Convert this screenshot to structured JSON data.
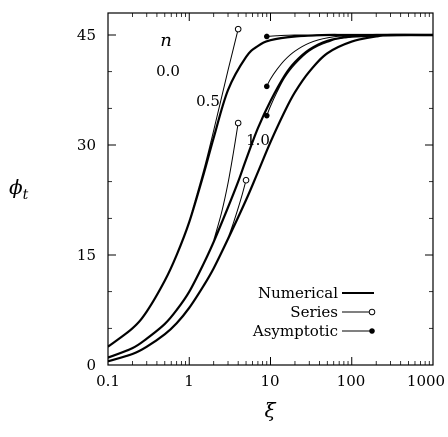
{
  "chart_data": {
    "type": "line",
    "xlabel": "ξ",
    "ylabel": "ϕ_t",
    "xscale": "log",
    "xlim": [
      0.1,
      1000
    ],
    "ylim": [
      0,
      48
    ],
    "x_ticks": [
      {
        "value": 0.1,
        "label": "0.1"
      },
      {
        "value": 1,
        "label": "1"
      },
      {
        "value": 10,
        "label": "10"
      },
      {
        "value": 100,
        "label": "100"
      },
      {
        "value": 1000,
        "label": "1000"
      }
    ],
    "y_ticks": [
      {
        "value": 0,
        "label": "0"
      },
      {
        "value": 15,
        "label": "15"
      },
      {
        "value": 30,
        "label": "30"
      },
      {
        "value": 45,
        "label": "45"
      }
    ],
    "parameter_label": "n",
    "grid": false,
    "legend_position": "bottom-right",
    "legend": [
      "Numerical",
      "Series",
      "Asymptotic"
    ],
    "curve_labels": [
      {
        "text": "0.0",
        "x": 1.5,
        "y": 40.5
      },
      {
        "text": "0.5",
        "x": 3.0,
        "y": 35.5
      },
      {
        "text": "1.0",
        "x": 13,
        "y": 30
      }
    ],
    "numerical": [
      {
        "n": "0.0",
        "x": [
          0.1,
          0.2,
          0.3,
          0.5,
          0.7,
          1,
          1.5,
          2,
          3,
          5,
          7,
          10,
          20,
          50,
          100,
          1000
        ],
        "y": [
          2.5,
          5,
          7.3,
          11.5,
          15,
          19.5,
          26,
          31,
          37.5,
          42,
          43.5,
          44.3,
          44.8,
          45,
          45,
          45
        ]
      },
      {
        "n": "0.5",
        "x": [
          0.1,
          0.2,
          0.3,
          0.5,
          0.7,
          1,
          1.5,
          2,
          3,
          4,
          5,
          7,
          10,
          15,
          20,
          30,
          50,
          100,
          200,
          1000
        ],
        "y": [
          1,
          2.3,
          3.6,
          5.6,
          7.5,
          10,
          13.8,
          16.8,
          21.5,
          25,
          28,
          32.3,
          36,
          39.5,
          41.3,
          43,
          44.2,
          44.8,
          45,
          45
        ]
      },
      {
        "n": "1.0",
        "x": [
          0.1,
          0.2,
          0.3,
          0.5,
          0.7,
          1,
          1.5,
          2,
          3,
          5,
          7,
          10,
          15,
          20,
          30,
          50,
          100,
          200,
          300,
          1000
        ],
        "y": [
          0.5,
          1.5,
          2.5,
          4.2,
          5.7,
          7.8,
          10.8,
          13.2,
          17.2,
          22.5,
          26.3,
          30.4,
          34.6,
          37.2,
          40,
          42.5,
          44.1,
          44.8,
          45,
          45
        ]
      }
    ],
    "series_expansion": [
      {
        "n": "0.0",
        "x": [
          1,
          1.5,
          2,
          2.5,
          3,
          3.5,
          4
        ],
        "y": [
          19.6,
          26.5,
          32,
          36.5,
          40.2,
          43.2,
          45.8
        ],
        "end_marker": [
          4,
          45.8
        ]
      },
      {
        "n": "0.5",
        "x": [
          2,
          2.5,
          3,
          3.5,
          4
        ],
        "y": [
          17,
          20.8,
          24.8,
          29,
          33
        ],
        "end_marker": [
          4,
          33
        ]
      },
      {
        "n": "1.0",
        "x": [
          3,
          3.5,
          4,
          4.5,
          5
        ],
        "y": [
          17.3,
          19.4,
          21.4,
          23.3,
          25.2
        ],
        "end_marker": [
          5,
          25.2
        ]
      }
    ],
    "asymptotic": [
      {
        "n": "0.0",
        "x": [
          9,
          12,
          20,
          40,
          100,
          1000
        ],
        "y": [
          44.8,
          44.9,
          45,
          45,
          45,
          45
        ],
        "start_marker": [
          9,
          44.8
        ]
      },
      {
        "n": "0.5",
        "x": [
          9,
          10,
          12,
          15,
          20,
          30,
          50,
          100,
          1000
        ],
        "y": [
          38,
          39,
          40.3,
          41.6,
          42.8,
          43.9,
          44.6,
          44.9,
          45
        ],
        "start_marker": [
          9,
          38
        ]
      },
      {
        "n": "1.0",
        "x": [
          9,
          10,
          12,
          15,
          20,
          30,
          50,
          100,
          1000
        ],
        "y": [
          34,
          35.3,
          37.2,
          39.2,
          41,
          42.8,
          44,
          44.7,
          45
        ],
        "start_marker": [
          9,
          34
        ]
      }
    ]
  }
}
